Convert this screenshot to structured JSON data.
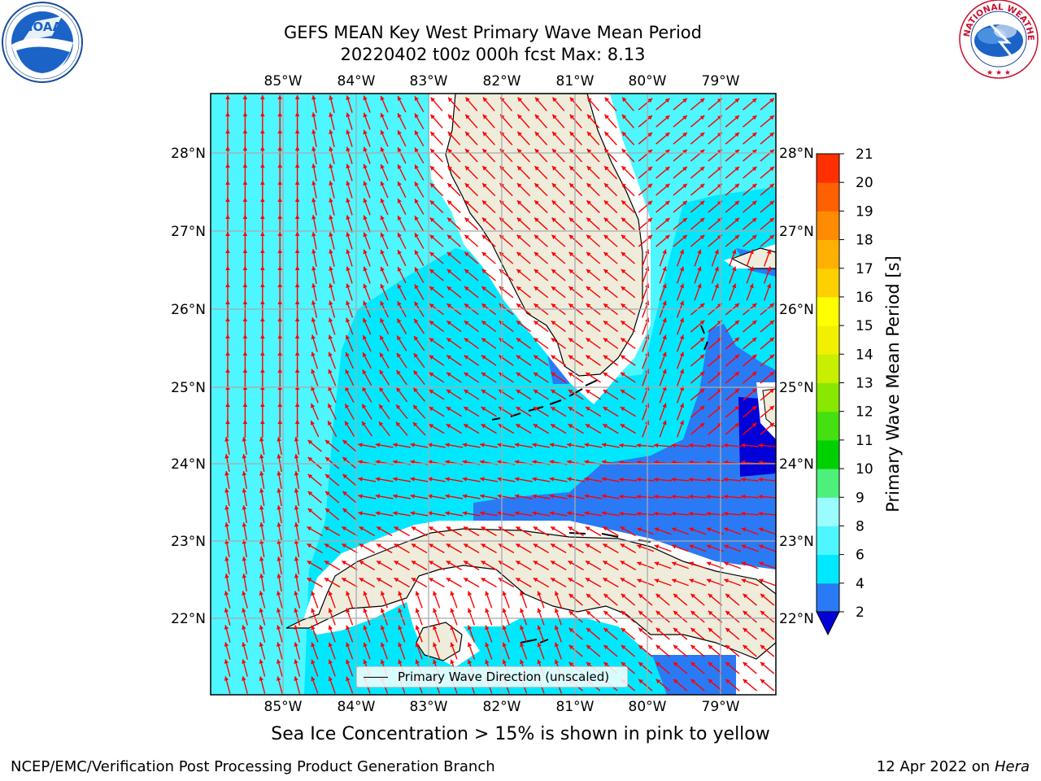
{
  "title_line1": "GEFS MEAN Key West Primary Wave Mean Period",
  "title_line2": "20220402 t00z 000h fcst   Max: 8.13",
  "logos": {
    "left": {
      "name": "NOAA",
      "ring_text": "NATIONAL OCEANIC AND ATMOSPHERIC ADMINISTRATION  U.S. DEPARTMENT OF COMMERCE"
    },
    "right": {
      "ring_text": "NATIONAL WEATHER SERVICE"
    }
  },
  "map": {
    "lon_labels": [
      "85°W",
      "84°W",
      "83°W",
      "82°W",
      "81°W",
      "80°W",
      "79°W"
    ],
    "lat_labels": [
      "28°N",
      "27°N",
      "26°N",
      "25°N",
      "24°N",
      "23°N",
      "22°N"
    ],
    "gridlines": true,
    "arrow_color": "#ff0000",
    "land_color": "#efecdc"
  },
  "legend_label": "Primary Wave Direction (unscaled)",
  "colorbar": {
    "label": "Primary Wave Mean Period [s]",
    "ticks": [
      "2",
      "4",
      "6",
      "8",
      "9",
      "10",
      "11",
      "12",
      "13",
      "14",
      "15",
      "16",
      "17",
      "18",
      "19",
      "20",
      "21"
    ],
    "colors": [
      "#0000d8",
      "#2b7af5",
      "#00e8ff",
      "#4ef6ff",
      "#9afcfe",
      "#4df07a",
      "#00d000",
      "#44e010",
      "#88e800",
      "#c8ee00",
      "#f0f000",
      "#ffff00",
      "#ffd000",
      "#ffb000",
      "#ff8c00",
      "#ff6000",
      "#ff3000",
      "#ff0000"
    ]
  },
  "subtitle": "Sea Ice Concentration > 15% is shown in pink to yellow",
  "footer_left": "NCEP/EMC/Verification Post Processing Product Generation Branch",
  "footer_date": "12 Apr 2022 on",
  "footer_host": "Hera"
}
